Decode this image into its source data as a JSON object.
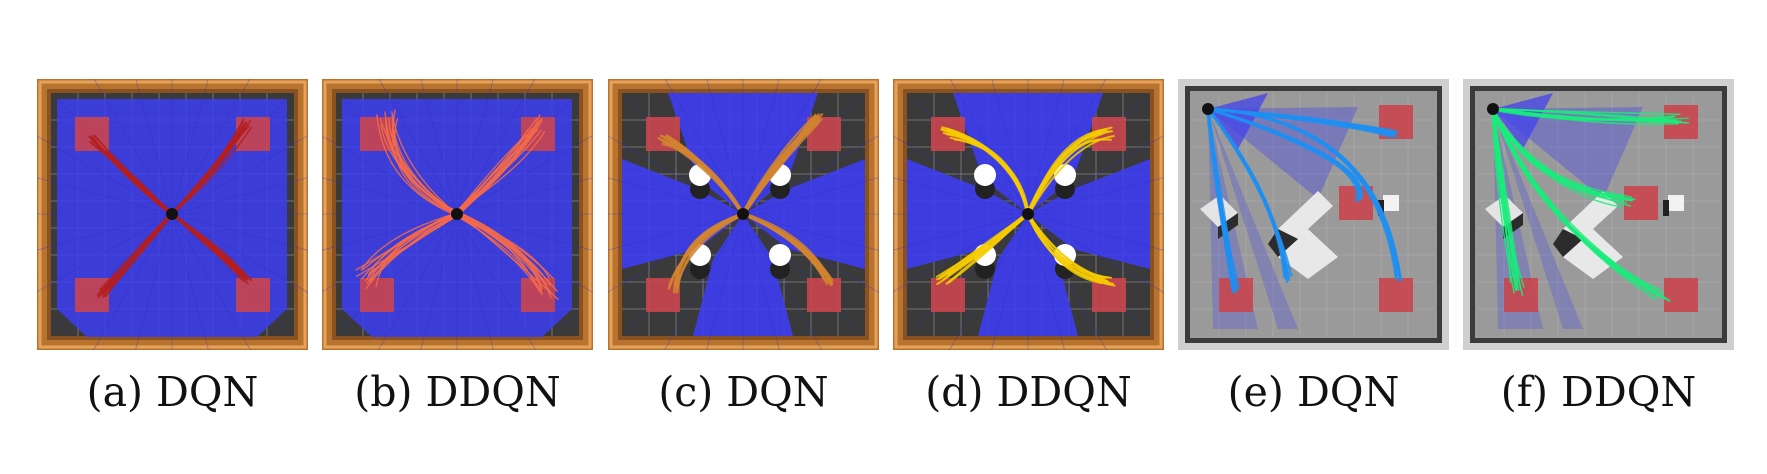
{
  "panels": [
    {
      "caption": "(a) DQN",
      "env": "wood",
      "obstacles": "none",
      "traj_color": "#b41e1e"
    },
    {
      "caption": "(b) DDQN",
      "env": "wood",
      "obstacles": "none",
      "traj_color": "#f46a4a"
    },
    {
      "caption": "(c) DQN",
      "env": "wood",
      "obstacles": "cylinders",
      "traj_color": "#d18430"
    },
    {
      "caption": "(d) DDQN",
      "env": "wood",
      "obstacles": "cylinders",
      "traj_color": "#f5cb00"
    },
    {
      "caption": "(e) DQN",
      "env": "gray",
      "obstacles": "blocks",
      "traj_color": "#1e8ff0"
    },
    {
      "caption": "(f) DDQN",
      "env": "gray",
      "obstacles": "blocks",
      "traj_color": "#19ec7a"
    }
  ]
}
